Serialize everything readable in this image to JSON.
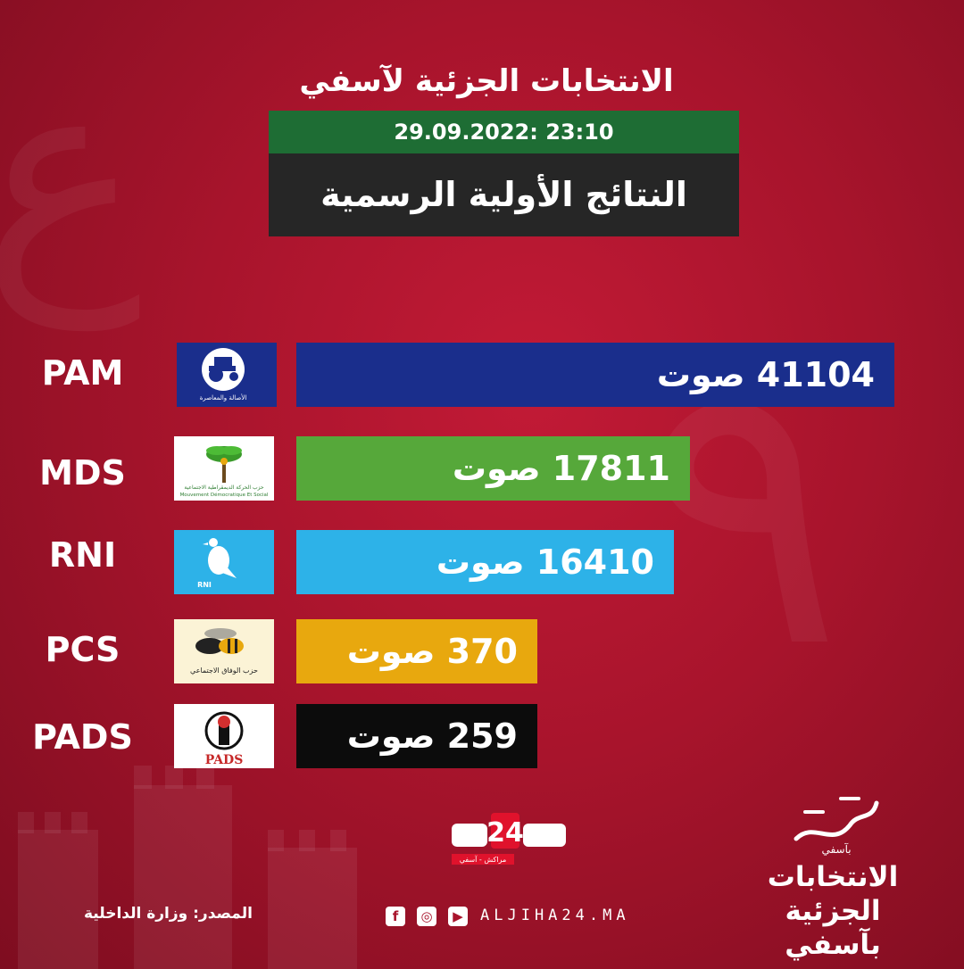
{
  "header": {
    "title": "الانتخابات الجزئية لآسفي",
    "datetime": "29.09.2022: 23:10",
    "subtitle": "النتائج الأولية الرسمية"
  },
  "chart_data": {
    "type": "bar",
    "orientation": "horizontal",
    "categories": [
      "PAM",
      "MDS",
      "RNI",
      "PCS",
      "PADS"
    ],
    "values": [
      41104,
      17811,
      16410,
      370,
      259
    ],
    "value_unit": "صوت",
    "value_labels": [
      "41104 صوت",
      "17811 صوت",
      "16410 صوت",
      "370 صوت",
      "259 صوت"
    ],
    "colors": [
      "#1a2e8c",
      "#56a83a",
      "#2db2e8",
      "#e8a80e",
      "#0c0c0c"
    ],
    "title": "",
    "xlabel": "",
    "ylabel": ""
  },
  "logos": {
    "pam_caption": "الأصالة والمعاصرة",
    "mds_caption": "حزب الحركة الديمقراطية الاجتماعية",
    "mds_caption_fr": "Mouvement Démocratique Et Social",
    "rni_caption": "RNI",
    "pcs_caption": "حزب الوفاق الاجتماعي",
    "pads_caption": "PADS"
  },
  "footer": {
    "source": "المصدر: وزارة الداخلية",
    "site": "ALJIHA24.MA",
    "brand": "جهة24",
    "brand_tagline": "مراكش - آسفي",
    "side_script": "بآسفي",
    "side_title_line1": "الانتخابات",
    "side_title_line2": "الجزئية بآسفي",
    "social_icons": [
      "facebook-icon",
      "instagram-icon",
      "youtube-icon"
    ]
  }
}
